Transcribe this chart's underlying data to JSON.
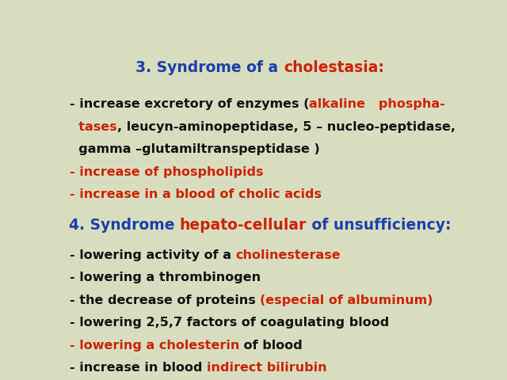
{
  "background_color": "#d9ddc0",
  "blue": "#1c3faa",
  "red": "#cc2200",
  "dark": "#111111",
  "title3_parts": [
    {
      "text": "3. Syndrome of a ",
      "color": "#1c3faa"
    },
    {
      "text": "cholestasia:",
      "color": "#cc2200"
    }
  ],
  "title4_parts": [
    {
      "text": "4. Syndrome ",
      "color": "#1c3faa"
    },
    {
      "text": "hepato-cellular",
      "color": "#cc2200"
    },
    {
      "text": " of unsufficiency:",
      "color": "#1c3faa"
    }
  ],
  "section3_lines": [
    [
      {
        "text": "- increase excretory of enzymes (",
        "color": "#111111"
      },
      {
        "text": "alkaline   phospha-",
        "color": "#cc2200"
      }
    ],
    [
      {
        "text": "  tases",
        "color": "#cc2200"
      },
      {
        "text": ", leucyn-aminopeptidase, 5 – nucleo-peptidase,",
        "color": "#111111"
      }
    ],
    [
      {
        "text": "  gamma –glutamiltranspeptidase )",
        "color": "#111111"
      }
    ],
    [
      {
        "text": "- increase of phospholipids",
        "color": "#cc2200"
      }
    ],
    [
      {
        "text": "- increase in a blood of cholic acids",
        "color": "#cc2200"
      }
    ]
  ],
  "section4_lines": [
    [
      {
        "text": "- lowering activity of a ",
        "color": "#111111"
      },
      {
        "text": "cholinesterase",
        "color": "#cc2200"
      }
    ],
    [
      {
        "text": "- lowering a thrombinogen",
        "color": "#111111"
      }
    ],
    [
      {
        "text": "- the decrease of proteins ",
        "color": "#111111"
      },
      {
        "text": "(especial of albuminum)",
        "color": "#cc2200"
      }
    ],
    [
      {
        "text": "- lowering 2,5,7 factors of coagulating blood",
        "color": "#111111"
      }
    ],
    [
      {
        "text": "- lowering a cholesterin",
        "color": "#cc2200"
      },
      {
        "text": " of blood",
        "color": "#111111"
      }
    ],
    [
      {
        "text": "- increase in blood ",
        "color": "#111111"
      },
      {
        "text": "indirect bilirubin",
        "color": "#cc2200"
      }
    ]
  ],
  "font_size_title": 13.5,
  "font_size_body": 11.5
}
